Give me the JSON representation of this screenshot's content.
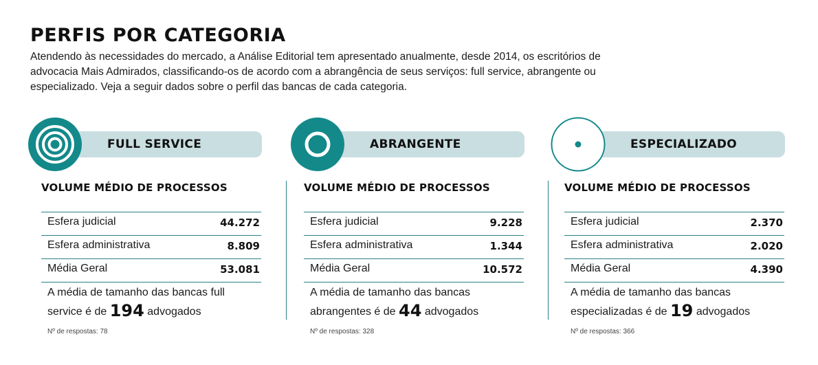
{
  "header": {
    "title": "PERFIS POR CATEGORIA",
    "intro": "Atendendo às necessidades do mercado, a Análise Editorial tem apresentado anualmente, desde 2014, os escritórios de advocacia Mais Admirados, classificando-os de acordo com a abrangência de seus serviços: full service, abrangente ou especializado. Veja a seguir dados sobre o perfil das bancas de cada categoria."
  },
  "accent_colors": {
    "teal": "#13898a",
    "pill": "#c9dee1",
    "rule": "#2a7f83"
  },
  "categories": [
    {
      "name": "FULL SERVICE",
      "icon": "concentric-circles-icon",
      "volume_heading": "VOLUME MÉDIO DE PROCESSOS",
      "rows": [
        {
          "label": "Esfera judicial",
          "value": "44.272"
        },
        {
          "label": "Esfera administrativa",
          "value": "8.809"
        },
        {
          "label": "Média Geral",
          "value": "53.081"
        }
      ],
      "summary_before": "A média de tamanho das bancas full service é de ",
      "summary_number": "194",
      "summary_after": " advogados",
      "responses": "Nº de respostas: 78"
    },
    {
      "name": "ABRANGENTE",
      "icon": "ring-icon",
      "volume_heading": "VOLUME MÉDIO DE PROCESSOS",
      "rows": [
        {
          "label": "Esfera judicial",
          "value": "9.228"
        },
        {
          "label": "Esfera administrativa",
          "value": "1.344"
        },
        {
          "label": "Média Geral",
          "value": "10.572"
        }
      ],
      "summary_before": "A média de tamanho das bancas abrangentes é de ",
      "summary_number": "44",
      "summary_after": " advogados",
      "responses": "Nº de respostas: 328"
    },
    {
      "name": "ESPECIALIZADO",
      "icon": "dot-circle-icon",
      "volume_heading": "VOLUME MÉDIO DE PROCESSOS",
      "rows": [
        {
          "label": "Esfera judicial",
          "value": "2.370"
        },
        {
          "label": "Esfera administrativa",
          "value": "2.020"
        },
        {
          "label": "Média Geral",
          "value": "4.390"
        }
      ],
      "summary_before": "A média de tamanho das bancas especializadas é de ",
      "summary_number": "19",
      "summary_after": " advogados",
      "responses": "Nº de respostas: 366"
    }
  ]
}
